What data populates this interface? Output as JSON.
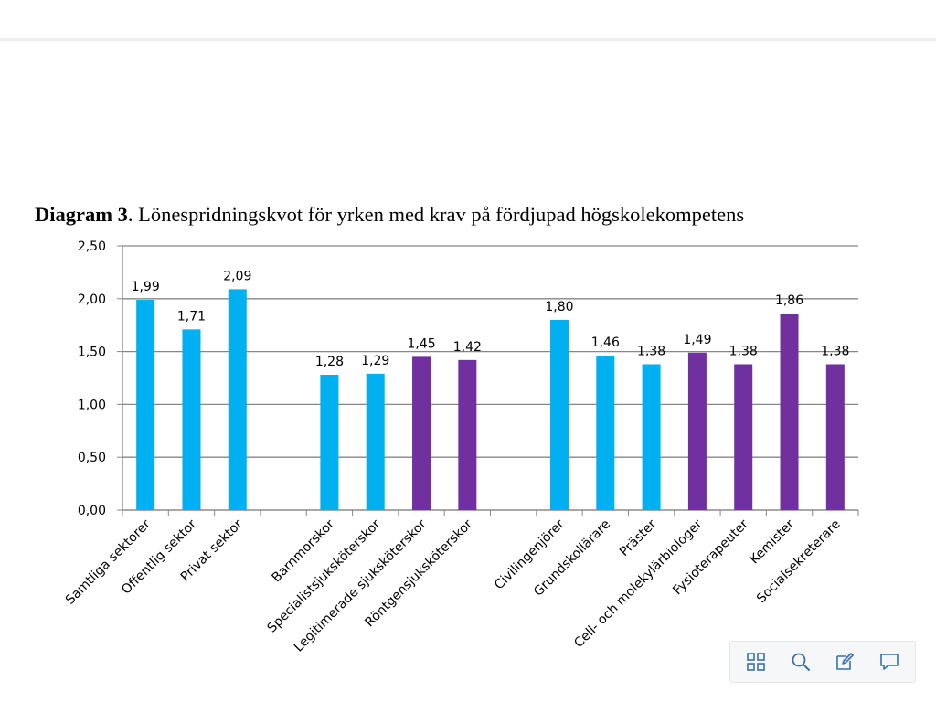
{
  "caption": {
    "bold": "Diagram 3",
    "rest": ". Lönespridningskvot för yrken med krav på fördjupad högskolekompetens"
  },
  "colors": {
    "blue": "#00b0f0",
    "purple": "#7030a0",
    "grid": "#868686",
    "axis": "#868686"
  },
  "chart_data": {
    "type": "bar",
    "title": "",
    "xlabel": "",
    "ylabel": "",
    "ylim": [
      0,
      2.5
    ],
    "yticks": [
      "0,00",
      "0,50",
      "1,00",
      "1,50",
      "2,00",
      "2,50"
    ],
    "grid": true,
    "categories": [
      "Samtliga sektorer",
      "Offentlig sektor",
      "Privat sektor",
      "",
      "Barnmorskor",
      "Specialistsjuksköterskor",
      "Legitimerade sjuksköterskor",
      "Röntgensjuksköterskor",
      "",
      "Civilingenjörer",
      "Grundskollärare",
      "Präster",
      "Cell- och molekylärbiologer",
      "Fysioterapeuter",
      "Kemister",
      "Socialsekreterare"
    ],
    "values": [
      1.99,
      1.71,
      2.09,
      null,
      1.28,
      1.29,
      1.45,
      1.42,
      null,
      1.8,
      1.46,
      1.38,
      1.49,
      1.38,
      1.86,
      1.38
    ],
    "data_labels": [
      "1,99",
      "1,71",
      "2,09",
      "",
      "1,28",
      "1,29",
      "1,45",
      "1,42",
      "",
      "1,80",
      "1,46",
      "1,38",
      "1,49",
      "1,38",
      "1,86",
      "1,38"
    ],
    "bar_colors": [
      "blue",
      "blue",
      "blue",
      "",
      "blue",
      "blue",
      "purple",
      "purple",
      "",
      "blue",
      "blue",
      "blue",
      "purple",
      "purple",
      "purple",
      "purple"
    ]
  },
  "toolbar": {
    "buttons": [
      {
        "name": "grid-view-icon"
      },
      {
        "name": "search-icon"
      },
      {
        "name": "edit-icon"
      },
      {
        "name": "comment-icon"
      }
    ]
  }
}
